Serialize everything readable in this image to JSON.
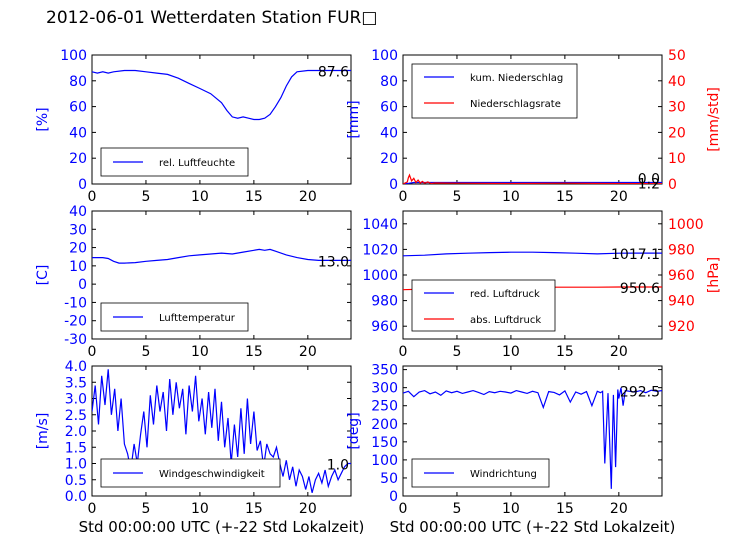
{
  "title": "2012-06-01 Wetterdaten Station FUR□",
  "colors": {
    "blue": "#0000ff",
    "red": "#ff0000",
    "black": "#000000"
  },
  "chart_data": [
    {
      "id": "humidity",
      "type": "line",
      "ylabel": "[%]",
      "xlim": [
        0,
        24
      ],
      "ylim": [
        0,
        100
      ],
      "xticks": [
        0,
        5,
        10,
        15,
        20
      ],
      "yticks": [
        0,
        20,
        40,
        60,
        80,
        100
      ],
      "legend": "bottom-left",
      "current_value": "87.6",
      "series": [
        {
          "name": "rel. Luftfeuchte",
          "color": "#0000ff",
          "axis": "left",
          "x": [
            0,
            0.5,
            1,
            1.5,
            2,
            3,
            4,
            5,
            6,
            7,
            8,
            9,
            10,
            11,
            12,
            12.5,
            13,
            13.5,
            14,
            14.5,
            15,
            15.5,
            16,
            16.5,
            17,
            17.5,
            18,
            18.5,
            19,
            20,
            21,
            22,
            23,
            24
          ],
          "y": [
            87,
            86,
            87,
            86,
            87,
            88,
            88,
            87,
            86,
            85,
            82,
            78,
            74,
            70,
            63,
            57,
            52,
            51,
            52,
            51,
            50,
            50,
            51,
            54,
            60,
            67,
            76,
            83,
            87,
            88,
            88,
            88,
            88,
            88
          ]
        }
      ]
    },
    {
      "id": "precip",
      "type": "line",
      "ylabel": "[mm]",
      "y2label": "[mm/std]",
      "xlim": [
        0,
        24
      ],
      "ylim": [
        0,
        100
      ],
      "y2lim": [
        0,
        50
      ],
      "xticks": [
        0,
        5,
        10,
        15,
        20
      ],
      "yticks": [
        0,
        20,
        40,
        60,
        80,
        100
      ],
      "y2ticks": [
        0,
        10,
        20,
        30,
        40,
        50
      ],
      "legend": "top-left",
      "current_value": "1.2",
      "current_value2": "0.0",
      "series": [
        {
          "name": "kum. Niederschlag",
          "color": "#0000ff",
          "axis": "left",
          "x": [
            0,
            0.5,
            1,
            24
          ],
          "y": [
            0,
            0.5,
            1.2,
            1.2
          ]
        },
        {
          "name": "Niederschlagsrate",
          "color": "#ff0000",
          "axis": "right",
          "x": [
            0,
            0.4,
            0.5,
            0.6,
            0.8,
            1.0,
            1.2,
            1.4,
            1.6,
            1.8,
            2.0,
            2.3,
            2.6,
            3,
            5,
            10,
            15,
            19,
            24
          ],
          "y": [
            0,
            0.8,
            2.5,
            3.5,
            1.2,
            2.2,
            0.6,
            1.5,
            0.4,
            1.0,
            0.3,
            0.8,
            0.2,
            0.4,
            0.3,
            0.2,
            0.3,
            0.2,
            0.1
          ]
        }
      ]
    },
    {
      "id": "temperature",
      "type": "line",
      "ylabel": "[C]",
      "xlim": [
        0,
        24
      ],
      "ylim": [
        -30,
        40
      ],
      "xticks": [
        0,
        5,
        10,
        15,
        20
      ],
      "yticks": [
        -30,
        -20,
        -10,
        0,
        10,
        20,
        30,
        40
      ],
      "legend": "bottom-left",
      "current_value": "13.0",
      "series": [
        {
          "name": "Lufttemperatur",
          "color": "#0000ff",
          "axis": "left",
          "x": [
            0,
            1,
            1.5,
            2,
            2.5,
            3,
            4,
            5,
            6,
            7,
            8,
            9,
            10,
            11,
            12,
            13,
            14,
            15,
            15.5,
            16,
            16.5,
            17,
            18,
            19,
            20,
            21,
            22,
            23,
            24
          ],
          "y": [
            14.5,
            14.5,
            14,
            12.5,
            11.5,
            11.5,
            11.8,
            12.5,
            13,
            13.5,
            14.5,
            15.5,
            16,
            16.5,
            17,
            16.5,
            17.5,
            18.5,
            19,
            18.5,
            19,
            18,
            16,
            14.5,
            13.5,
            13,
            13,
            13,
            13
          ]
        }
      ]
    },
    {
      "id": "pressure",
      "type": "line",
      "ylabel": "",
      "y2label": "[hPa]",
      "xlim": [
        0,
        24
      ],
      "ylim": [
        950,
        1050
      ],
      "y2lim": [
        910,
        1010
      ],
      "xticks": [
        0,
        5,
        10,
        15,
        20
      ],
      "yticks": [
        960,
        980,
        1000,
        1020,
        1040
      ],
      "y2ticks": [
        920,
        940,
        960,
        980,
        1000
      ],
      "legend": "bottom-left",
      "current_value": "1017.1",
      "current_value2": "950.6",
      "series": [
        {
          "name": "red. Luftdruck",
          "color": "#0000ff",
          "axis": "left",
          "x": [
            0,
            2,
            4,
            6,
            8,
            10,
            12,
            14,
            16,
            18,
            20,
            22,
            24
          ],
          "y": [
            1015,
            1015.5,
            1016.5,
            1017,
            1017.5,
            1017.8,
            1017.8,
            1017.5,
            1017,
            1016.5,
            1017,
            1017.1,
            1017.1
          ]
        },
        {
          "name": "abs. Luftdruck",
          "color": "#ff0000",
          "axis": "right",
          "x": [
            0,
            2,
            4,
            6,
            8,
            10,
            12,
            14,
            16,
            18,
            20,
            22,
            24
          ],
          "y": [
            948.5,
            949,
            949.5,
            949.8,
            950,
            950.2,
            950.4,
            950.5,
            950.5,
            950.5,
            950.6,
            950.6,
            950.6
          ]
        }
      ]
    },
    {
      "id": "wind_speed",
      "type": "line",
      "ylabel": "[m/s]",
      "xlim": [
        0,
        24
      ],
      "ylim": [
        0,
        4
      ],
      "xticks": [
        0,
        5,
        10,
        15,
        20
      ],
      "yticks": [
        0.0,
        0.5,
        1.0,
        1.5,
        2.0,
        2.5,
        3.0,
        3.5,
        4.0
      ],
      "legend": "bottom-left",
      "current_value": "1.0",
      "series": [
        {
          "name": "Windgeschwindigkeit",
          "color": "#0000ff",
          "axis": "left",
          "x": [
            0,
            0.3,
            0.6,
            0.9,
            1.2,
            1.5,
            1.8,
            2.1,
            2.4,
            2.7,
            3,
            3.3,
            3.6,
            3.9,
            4.2,
            4.5,
            4.8,
            5.1,
            5.4,
            5.7,
            6,
            6.3,
            6.6,
            6.9,
            7.2,
            7.5,
            7.8,
            8.1,
            8.4,
            8.7,
            9,
            9.3,
            9.6,
            9.9,
            10.2,
            10.5,
            10.8,
            11.1,
            11.4,
            11.7,
            12,
            12.3,
            12.6,
            12.9,
            13.2,
            13.5,
            13.8,
            14.1,
            14.4,
            14.7,
            15,
            15.3,
            15.6,
            15.9,
            16.2,
            16.5,
            16.8,
            17.1,
            17.4,
            17.7,
            18,
            18.3,
            18.6,
            18.9,
            19.2,
            19.5,
            19.8,
            20.1,
            20.4,
            20.7,
            21,
            21.3,
            21.6,
            21.9,
            22.2,
            22.5,
            22.8,
            23.1,
            23.4,
            23.7,
            24
          ],
          "y": [
            2.6,
            3.4,
            2.2,
            3.7,
            2.8,
            3.9,
            2.5,
            3.3,
            2.0,
            3.0,
            1.6,
            1.3,
            0.8,
            1.6,
            1.0,
            1.9,
            2.6,
            1.5,
            3.1,
            2.2,
            3.4,
            2.6,
            3.2,
            2.0,
            3.6,
            2.5,
            3.5,
            2.7,
            3.3,
            1.9,
            3.4,
            2.6,
            3.7,
            2.3,
            3.0,
            1.9,
            3.2,
            2.1,
            3.3,
            1.7,
            2.9,
            1.5,
            2.4,
            1.0,
            2.2,
            1.2,
            2.7,
            1.3,
            3.0,
            1.6,
            2.6,
            1.4,
            1.7,
            0.9,
            1.6,
            1.3,
            1.2,
            1.5,
            1.0,
            0.6,
            1.1,
            0.5,
            0.9,
            0.3,
            0.8,
            0.6,
            0.2,
            0.6,
            0.1,
            0.5,
            0.7,
            0.4,
            0.8,
            0.3,
            0.6,
            0.8,
            0.5,
            0.7,
            0.9,
            1.0,
            1.0
          ]
        }
      ]
    },
    {
      "id": "wind_direction",
      "type": "line",
      "ylabel": "[deg]",
      "xlim": [
        0,
        24
      ],
      "ylim": [
        0,
        360
      ],
      "xticks": [
        0,
        5,
        10,
        15,
        20
      ],
      "yticks": [
        0,
        50,
        100,
        150,
        200,
        250,
        300,
        350
      ],
      "legend": "bottom-left",
      "current_value": "292.5",
      "series": [
        {
          "name": "Windrichtung",
          "color": "#0000ff",
          "axis": "left",
          "x": [
            0,
            0.5,
            1,
            1.5,
            2,
            2.5,
            3,
            3.5,
            4,
            4.5,
            5,
            5.5,
            6,
            6.5,
            7,
            7.5,
            8,
            8.5,
            9,
            9.5,
            10,
            10.5,
            11,
            11.5,
            12,
            12.5,
            13,
            13.5,
            14,
            14.5,
            15,
            15.5,
            16,
            16.5,
            17,
            17.5,
            18,
            18.3,
            18.5,
            18.7,
            19,
            19.3,
            19.5,
            19.7,
            19.9,
            20,
            20.2,
            20.4,
            20.6,
            21,
            21.5,
            22,
            22.5,
            23,
            23.5,
            24
          ],
          "y": [
            285,
            290,
            275,
            288,
            292,
            283,
            288,
            279,
            291,
            286,
            290,
            284,
            288,
            292,
            287,
            281,
            289,
            286,
            290,
            288,
            285,
            292,
            288,
            284,
            290,
            286,
            245,
            289,
            287,
            280,
            291,
            260,
            288,
            282,
            289,
            250,
            290,
            286,
            290,
            90,
            285,
            20,
            280,
            80,
            295,
            270,
            300,
            250,
            292,
            290,
            288,
            292,
            286,
            293,
            290,
            292
          ]
        }
      ]
    }
  ],
  "xlabel_left": "Std 00:00:00 UTC (+-22 Std Lokalzeit)",
  "xlabel_right": "Std 00:00:00 UTC (+-22 Std Lokalzeit)"
}
